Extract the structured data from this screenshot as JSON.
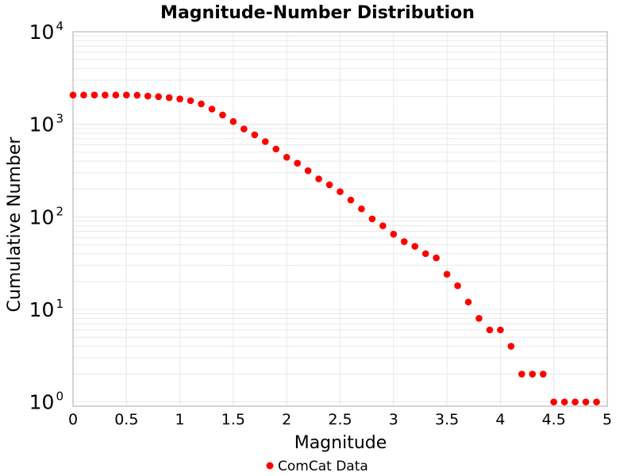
{
  "chart_data": {
    "type": "scatter",
    "title": "Magnitude-Number Distribution",
    "xlabel": "Magnitude",
    "ylabel": "Cumulative Number",
    "xlim": [
      0,
      5
    ],
    "ylim": [
      0.9,
      10000
    ],
    "yscale": "log",
    "grid": true,
    "legend_position": "bottom",
    "x_ticks": [
      "0",
      "0.5",
      "1",
      "1.5",
      "2",
      "2.5",
      "3",
      "3.5",
      "4",
      "4.5",
      "5"
    ],
    "y_ticks": [
      {
        "base": "10",
        "exp": "0"
      },
      {
        "base": "10",
        "exp": "1"
      },
      {
        "base": "10",
        "exp": "2"
      },
      {
        "base": "10",
        "exp": "3"
      },
      {
        "base": "10",
        "exp": "4"
      }
    ],
    "series": [
      {
        "name": "ComCat Data",
        "color": "#ff0000",
        "x": [
          0,
          0.1,
          0.2,
          0.3,
          0.4,
          0.5,
          0.6,
          0.7,
          0.8,
          0.9,
          1.0,
          1.1,
          1.2,
          1.3,
          1.4,
          1.5,
          1.6,
          1.7,
          1.8,
          1.9,
          2.0,
          2.1,
          2.2,
          2.3,
          2.4,
          2.5,
          2.6,
          2.7,
          2.8,
          2.9,
          3.0,
          3.1,
          3.2,
          3.3,
          3.4,
          3.5,
          3.6,
          3.7,
          3.8,
          3.9,
          4.0,
          4.1,
          4.2,
          4.3,
          4.4,
          4.5,
          4.6,
          4.7,
          4.8,
          4.9
        ],
        "y": [
          2070,
          2070,
          2070,
          2070,
          2070,
          2070,
          2060,
          2020,
          1990,
          1940,
          1880,
          1800,
          1660,
          1460,
          1260,
          1070,
          890,
          770,
          650,
          540,
          440,
          380,
          315,
          257,
          222,
          187,
          152,
          122,
          95,
          80,
          65,
          54,
          48,
          40,
          36,
          24,
          18,
          12,
          8,
          6,
          6,
          4,
          2,
          2,
          2,
          1,
          1,
          1,
          1,
          1
        ]
      }
    ]
  }
}
